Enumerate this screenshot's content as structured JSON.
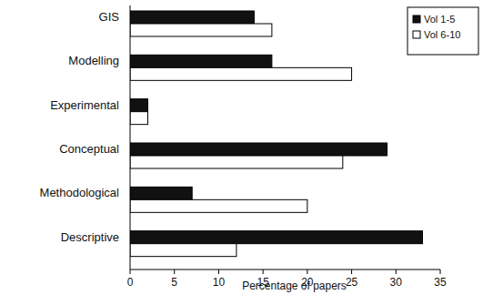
{
  "chart_data": {
    "type": "bar",
    "orientation": "horizontal",
    "categories": [
      "GIS",
      "Modelling",
      "Experimental",
      "Conceptual",
      "Methodological",
      "Descriptive"
    ],
    "series": [
      {
        "name": "Vol 1-5",
        "color": "#111111",
        "values": [
          14,
          16,
          2,
          29,
          7,
          33
        ]
      },
      {
        "name": "Vol 6-10",
        "color": "#ffffff",
        "values": [
          16,
          25,
          2,
          24,
          20,
          12
        ]
      }
    ],
    "x_label": "Percentage of papers",
    "xlim": [
      0,
      35
    ],
    "xticks": [
      0,
      5,
      10,
      15,
      20,
      25,
      30,
      35
    ],
    "grid": false,
    "legend": "upper right"
  }
}
